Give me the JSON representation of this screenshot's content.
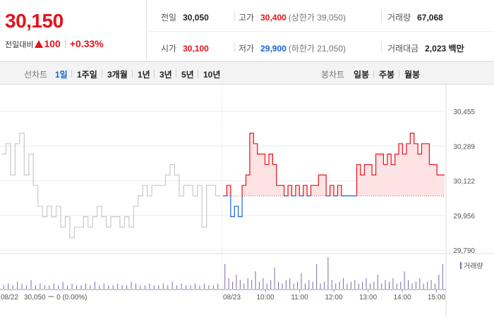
{
  "quote": {
    "price": "30,150",
    "change_label": "전일대비",
    "change_value": "100",
    "change_rate": "+0.33%",
    "prev_close_label": "전일",
    "prev_close": "30,050",
    "open_label": "시가",
    "open": "30,100",
    "high_label": "고가",
    "high": "30,400",
    "upper_limit": "(상한가 39,050)",
    "low_label": "저가",
    "low": "29,900",
    "lower_limit": "(하한가 21,050)",
    "volume_label": "거래량",
    "volume": "67,068",
    "amount_label": "거래대금",
    "amount": "2,023 백만"
  },
  "toolbar": {
    "line_chart_label": "선차트",
    "line_ranges": [
      "1일",
      "1주일",
      "3개월",
      "1년",
      "3년",
      "5년",
      "10년"
    ],
    "active_range": "1일",
    "candle_chart_label": "봉차트",
    "candle_ranges": [
      "일봉",
      "주봉",
      "월봉"
    ]
  },
  "chart_data": {
    "type": "line",
    "y_ticks": [
      "30,455",
      "30,289",
      "30,122",
      "29,956",
      "29,790"
    ],
    "ylim": [
      29790,
      30455
    ],
    "reference_price": 30050,
    "prev_day_label": "08/22",
    "prev_day_note": "30,050 ー 0 (0.00%)",
    "curr_day_label": "08/23",
    "x_ticks": [
      "10:00",
      "11:00",
      "12:00",
      "13:00",
      "14:00",
      "15:00"
    ],
    "volume_legend": "거래량",
    "prev_day_series": {
      "values": [
        30250,
        30300,
        30150,
        30300,
        30350,
        30150,
        30250,
        30100,
        30000,
        29950,
        30000,
        29950,
        30000,
        29900,
        29950,
        29850,
        29900,
        29900,
        29950,
        29900,
        29950,
        30000,
        29950,
        29900,
        29950,
        29950,
        29900,
        29950,
        29900,
        30000,
        30050,
        30100,
        30050,
        30100,
        30100,
        30100,
        30150,
        30200,
        30150,
        30050,
        30100,
        30100,
        30050,
        30100,
        29900,
        30100,
        30100,
        30050
      ]
    },
    "curr_day_series": {
      "values": [
        30050,
        30100,
        29950,
        30000,
        29950,
        30100,
        30150,
        30350,
        30300,
        30250,
        30250,
        30200,
        30250,
        30200,
        30100,
        30100,
        30050,
        30100,
        30050,
        30100,
        30050,
        30100,
        30050,
        30100,
        30100,
        30150,
        30150,
        30050,
        30100,
        30050,
        30100,
        30050,
        30050,
        30050,
        30050,
        30200,
        30150,
        30200,
        30200,
        30150,
        30250,
        30250,
        30200,
        30250,
        30200,
        30250,
        30300,
        30250,
        30300,
        30350,
        30300,
        30250,
        30300,
        30300,
        30200,
        30200,
        30150,
        30150
      ]
    },
    "volume_prev": [
      2,
      3,
      2,
      4,
      3,
      2,
      5,
      2,
      3,
      2,
      2,
      3,
      2,
      4,
      2,
      3,
      2,
      2,
      3,
      2,
      4,
      2,
      3,
      2,
      2,
      3,
      2,
      2,
      4,
      3,
      2,
      2,
      3,
      2,
      2,
      3,
      2,
      4,
      2,
      3,
      2,
      2,
      3,
      2,
      3,
      2,
      2,
      3
    ],
    "volume_curr": [
      14,
      6,
      4,
      8,
      5,
      3,
      6,
      5,
      10,
      4,
      6,
      3,
      5,
      12,
      4,
      3,
      5,
      6,
      3,
      4,
      9,
      3,
      5,
      4,
      14,
      3,
      4,
      18,
      5,
      3,
      4,
      6,
      3,
      4,
      5,
      3,
      4,
      6,
      3,
      4,
      8,
      3,
      5,
      4,
      6,
      3,
      4,
      10,
      5,
      3,
      4,
      6,
      3,
      4,
      5,
      3,
      8,
      14
    ]
  },
  "colors": {
    "up": "#e5121b",
    "down": "#1a63d3",
    "prev_day_line": "#c8c8c8",
    "fill_up": "#fde3e4",
    "volume_bar": "#7a6aa8"
  }
}
